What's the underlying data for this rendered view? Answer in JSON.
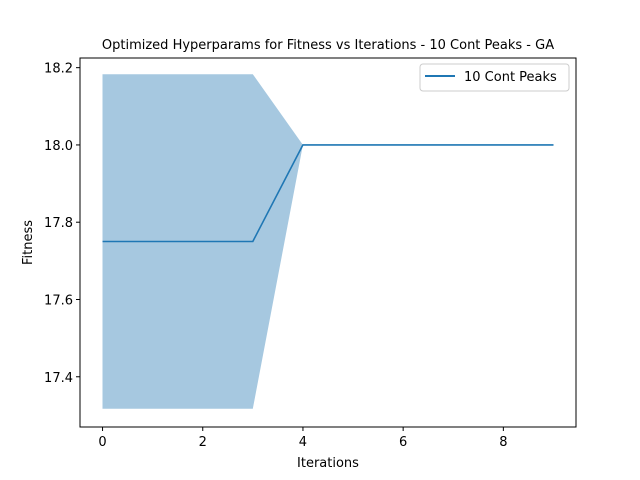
{
  "chart_data": {
    "type": "line",
    "title": "Optimized Hyperparams for Fitness vs Iterations - 10 Cont Peaks - GA",
    "xlabel": "Iterations",
    "ylabel": "Fitness",
    "xlim": [
      -0.45,
      9.45
    ],
    "ylim": [
      17.27,
      18.225
    ],
    "x_ticks": [
      0,
      2,
      4,
      6,
      8
    ],
    "y_ticks": [
      17.4,
      17.6,
      17.8,
      18.0,
      18.2
    ],
    "x_tick_labels": [
      "0",
      "2",
      "4",
      "6",
      "8"
    ],
    "y_tick_labels": [
      "17.4",
      "17.6",
      "17.8",
      "18.0",
      "18.2"
    ],
    "grid": false,
    "legend_position": "top-right",
    "series": [
      {
        "name": "10 Cont Peaks",
        "color": "#1f77b4",
        "band_color": "#a6c8e0",
        "x": [
          0,
          1,
          2,
          3,
          4,
          5,
          6,
          7,
          8,
          9
        ],
        "values": [
          17.75,
          17.75,
          17.75,
          17.75,
          18.0,
          18.0,
          18.0,
          18.0,
          18.0,
          18.0
        ],
        "upper": [
          18.183,
          18.183,
          18.183,
          18.183,
          18.0,
          18.0,
          18.0,
          18.0,
          18.0,
          18.0
        ],
        "lower": [
          17.317,
          17.317,
          17.317,
          17.317,
          18.0,
          18.0,
          18.0,
          18.0,
          18.0,
          18.0
        ]
      }
    ]
  }
}
